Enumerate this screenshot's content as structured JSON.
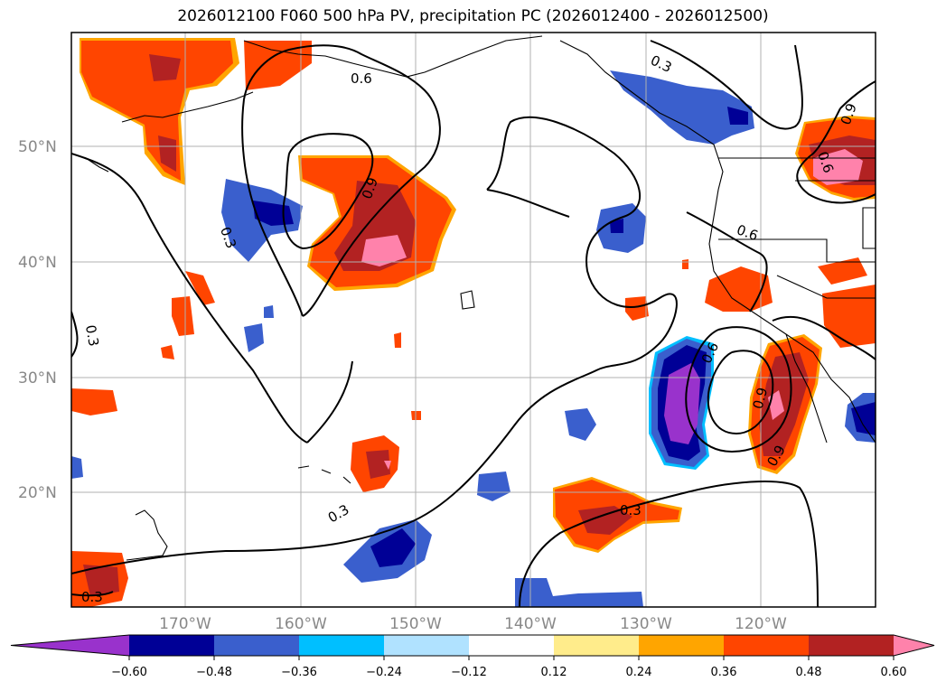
{
  "title": "2026012100 F060 500 hPa PV, precipitation PC (2026012400 - 2026012500)",
  "map": {
    "lat_labels": [
      "50°N",
      "40°N",
      "30°N",
      "20°N"
    ],
    "lon_labels": [
      "170°W",
      "160°W",
      "150°W",
      "140°W",
      "130°W",
      "120°W"
    ],
    "contour_labels": [
      "0.6",
      "0.3",
      "0.9",
      "0.3",
      "0.6",
      "0.9",
      "0.6",
      "0.3",
      "0.9",
      "0.6",
      "0.9",
      "0.3",
      "0.3",
      "0.3"
    ]
  },
  "colorbar": {
    "ticks": [
      "−0.60",
      "−0.48",
      "−0.36",
      "−0.24",
      "−0.12",
      "0.12",
      "0.24",
      "0.36",
      "0.48",
      "0.60"
    ],
    "colors": [
      "#9932CC",
      "#000096",
      "#3A5FCD",
      "#00BFFF",
      "#B0E2FF",
      "#FFFFFF",
      "#FFEC8B",
      "#FFA500",
      "#FF4500",
      "#B22222",
      "#FF82AB"
    ]
  }
}
